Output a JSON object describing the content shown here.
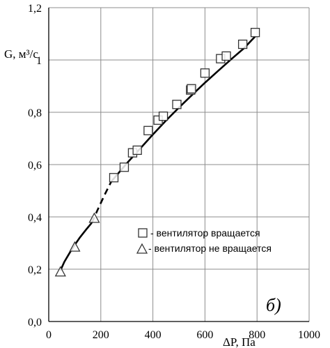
{
  "chart_data": {
    "type": "scatter",
    "ylabel": "G, м³/с",
    "xlabel": "ΔP, Па",
    "panel_label": "б)",
    "xlim": [
      0,
      1000
    ],
    "ylim": [
      0,
      1.2
    ],
    "x_ticks": [
      0,
      200,
      400,
      600,
      800,
      1000
    ],
    "x_tick_labels": [
      "0",
      "200",
      "400",
      "600",
      "800",
      "1000"
    ],
    "y_ticks": [
      0,
      0.2,
      0.4,
      0.6,
      0.8,
      1.0,
      1.2
    ],
    "y_tick_labels": [
      "0,0",
      "0,2",
      "0,4",
      "0,6",
      "0,8",
      "1",
      "1,2"
    ],
    "grid": true,
    "legend_position": "right",
    "series": [
      {
        "name": "- вентилятор вращается",
        "marker": "square",
        "x": [
          250,
          290,
          322,
          340,
          382,
          420,
          440,
          492,
          545,
          548,
          600,
          660,
          682,
          745,
          793
        ],
        "y": [
          0.55,
          0.59,
          0.645,
          0.655,
          0.73,
          0.77,
          0.785,
          0.83,
          0.885,
          0.89,
          0.95,
          1.005,
          1.015,
          1.06,
          1.105
        ]
      },
      {
        "name": "- вентилятор не вращается",
        "marker": "triangle",
        "x": [
          45,
          100,
          175
        ],
        "y": [
          0.19,
          0.285,
          0.395
        ]
      }
    ],
    "fit_line_solid_low": {
      "x": [
        45,
        60,
        80,
        100,
        120,
        145,
        165
      ],
      "y": [
        0.195,
        0.228,
        0.262,
        0.293,
        0.322,
        0.353,
        0.377
      ]
    },
    "fit_line_dashed": {
      "x": [
        165,
        190,
        215,
        240
      ],
      "y": [
        0.377,
        0.432,
        0.485,
        0.535
      ]
    },
    "fit_line_solid_high": {
      "x": [
        240,
        300,
        350,
        400,
        450,
        500,
        550,
        600,
        650,
        700,
        750,
        793
      ],
      "y": [
        0.535,
        0.605,
        0.66,
        0.715,
        0.768,
        0.818,
        0.866,
        0.913,
        0.958,
        1.002,
        1.045,
        1.09
      ]
    },
    "colors": {
      "axis": "#000000",
      "grid": "#8c8c8c",
      "marker_fill": "#ffffff",
      "marker_stroke": "#333333",
      "line": "#000000"
    }
  }
}
